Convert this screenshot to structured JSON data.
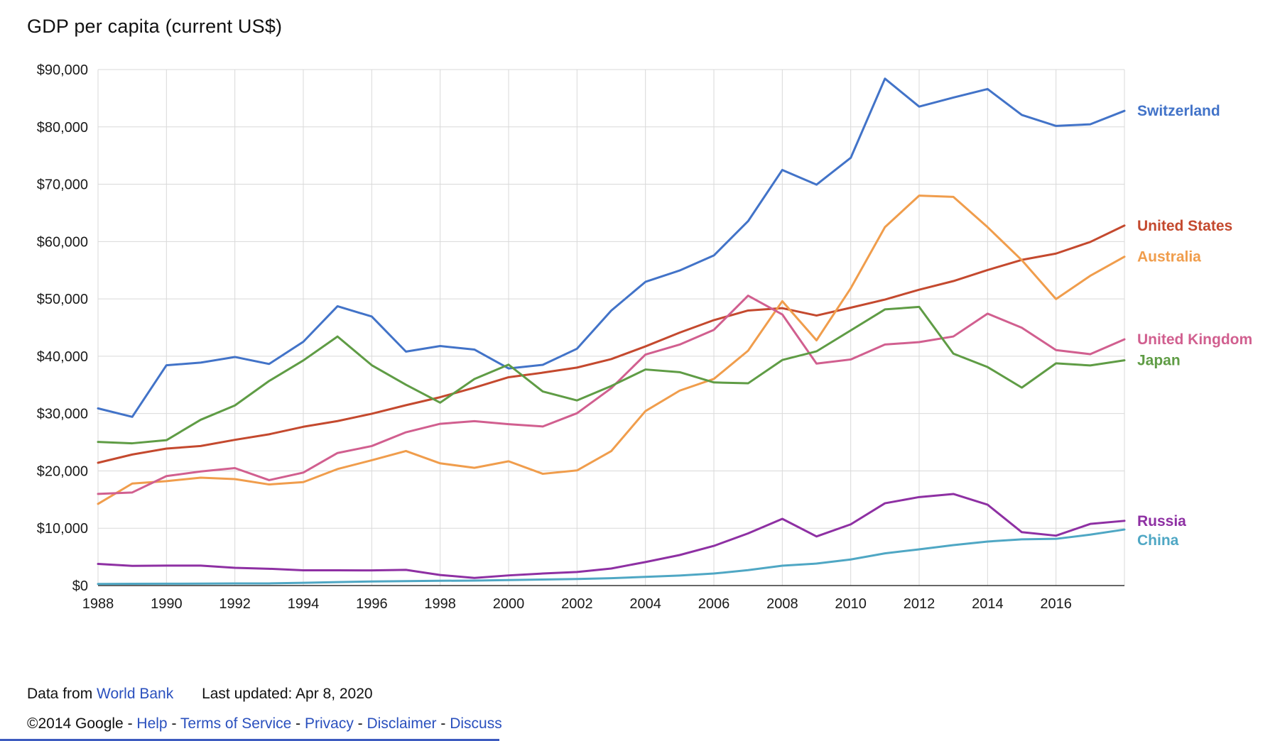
{
  "page": {
    "background": "#ffffff"
  },
  "chart_data": {
    "type": "line",
    "title": "GDP per capita (current US$)",
    "xlabel": "",
    "ylabel": "",
    "xlim": [
      1988,
      2018
    ],
    "ylim": [
      0,
      90000
    ],
    "grid": true,
    "legend_position": "right-end-of-lines",
    "x": [
      1988,
      1989,
      1990,
      1991,
      1992,
      1993,
      1994,
      1995,
      1996,
      1997,
      1998,
      1999,
      2000,
      2001,
      2002,
      2003,
      2004,
      2005,
      2006,
      2007,
      2008,
      2009,
      2010,
      2011,
      2012,
      2013,
      2014,
      2015,
      2016,
      2017,
      2018
    ],
    "xticks": [
      1988,
      1990,
      1992,
      1994,
      1996,
      1998,
      2000,
      2002,
      2004,
      2006,
      2008,
      2010,
      2012,
      2014,
      2016
    ],
    "yticks": [
      0,
      10000,
      20000,
      30000,
      40000,
      50000,
      60000,
      70000,
      80000,
      90000
    ],
    "ytick_labels": [
      "$0",
      "$10,000",
      "$20,000",
      "$30,000",
      "$40,000",
      "$50,000",
      "$60,000",
      "$70,000",
      "$80,000",
      "$90,000"
    ],
    "series": [
      {
        "name": "Switzerland",
        "color": "#4273c8",
        "values": [
          30904,
          29430,
          38428,
          38886,
          39867,
          38650,
          42522,
          48718,
          46927,
          40805,
          41779,
          41166,
          37868,
          38505,
          41310,
          47956,
          52974,
          54952,
          57580,
          63555,
          72488,
          69927,
          74606,
          88416,
          83538,
          85112,
          86606,
          82082,
          80172,
          80450,
          82797
        ]
      },
      {
        "name": "United States",
        "color": "#c4492e",
        "values": [
          21417,
          22857,
          23889,
          24342,
          25419,
          26387,
          27695,
          28691,
          29968,
          31459,
          32854,
          34514,
          36335,
          37133,
          38023,
          39496,
          41713,
          44115,
          46299,
          47976,
          48383,
          47100,
          48468,
          49883,
          51603,
          53107,
          55033,
          56803,
          57904,
          59928,
          62795
        ]
      },
      {
        "name": "Australia",
        "color": "#f09d4c",
        "values": [
          14249,
          17796,
          18211,
          18820,
          18570,
          17634,
          18046,
          20320,
          21861,
          23469,
          21318,
          20533,
          21679,
          19491,
          20082,
          23447,
          30431,
          33999,
          36045,
          40960,
          49601,
          42772,
          51850,
          62518,
          68012,
          67792,
          62510,
          56755,
          49971,
          54028,
          57354
        ]
      },
      {
        "name": "United Kingdom",
        "color": "#d15f8f",
        "values": [
          15987,
          16239,
          19095,
          19900,
          20487,
          18389,
          19709,
          23123,
          24333,
          26735,
          28214,
          28670,
          28150,
          27745,
          30057,
          34419,
          40290,
          42030,
          44600,
          50567,
          47287,
          38713,
          39436,
          42039,
          42463,
          43445,
          47426,
          44975,
          41064,
          40361,
          42944
        ]
      },
      {
        "name": "Japan",
        "color": "#5f9c45",
        "values": [
          25051,
          24813,
          25359,
          28915,
          31414,
          35681,
          39268,
          43440,
          38436,
          35021,
          31902,
          36026,
          38532,
          33846,
          32289,
          34808,
          37688,
          37217,
          35434,
          35275,
          39339,
          40855,
          44508,
          48168,
          48603,
          40454,
          38109,
          34524,
          38762,
          38387,
          39290
        ]
      },
      {
        "name": "Russia",
        "color": "#8e30a3",
        "values": [
          3777,
          3428,
          3485,
          3485,
          3098,
          2930,
          2662,
          2666,
          2643,
          2737,
          1844,
          1330,
          1772,
          2100,
          2370,
          2975,
          4102,
          5323,
          6920,
          9101,
          11635,
          8563,
          10675,
          14351,
          15435,
          15975,
          14101,
          9313,
          8705,
          10751,
          11289
        ]
      },
      {
        "name": "China",
        "color": "#4fa7c4",
        "values": [
          284,
          311,
          318,
          333,
          366,
          377,
          473,
          610,
          709,
          781,
          829,
          873,
          959,
          1053,
          1149,
          1289,
          1509,
          1753,
          2099,
          2694,
          3468,
          3832,
          4550,
          5618,
          6317,
          7051,
          7679,
          8067,
          8148,
          8879,
          9771
        ]
      }
    ]
  },
  "footer": {
    "data_from_label": "Data from",
    "data_source_link": "World Bank",
    "last_updated": "Last updated: Apr 8, 2020",
    "copyright": "©2014 Google",
    "links": [
      "Help",
      "Terms of Service",
      "Privacy",
      "Disclaimer",
      "Discuss"
    ],
    "separator": "-",
    "link_color": "#2a50be"
  },
  "colors": {
    "grid": "#d9d9d9",
    "axis": "#333333",
    "text": "#1a1a1a",
    "bottom_line": "#3d5bbf"
  }
}
